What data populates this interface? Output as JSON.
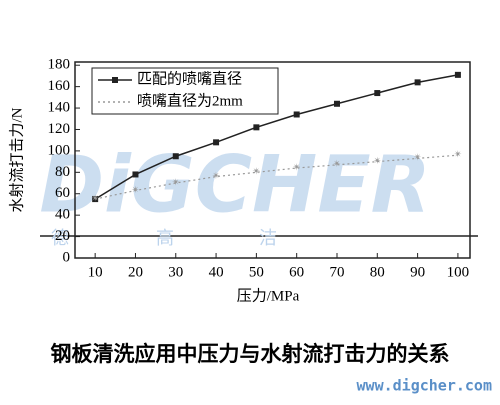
{
  "chart_data": {
    "type": "line",
    "x": [
      10,
      20,
      30,
      40,
      50,
      60,
      70,
      80,
      90,
      100
    ],
    "series": [
      {
        "name": "匹配的喷嘴直径",
        "color": "#222222",
        "dash": false,
        "values": [
          55,
          78,
          95,
          108,
          122,
          134,
          144,
          154,
          164,
          171
        ]
      },
      {
        "name": "喷嘴直径为2mm",
        "color": "#999999",
        "dash": true,
        "values": [
          55,
          63,
          70,
          76,
          80,
          84,
          87,
          90,
          93,
          96
        ]
      }
    ],
    "xlim": [
      5,
      103
    ],
    "xticks": [
      10,
      20,
      30,
      40,
      50,
      60,
      70,
      80,
      90,
      100
    ],
    "ylim": [
      0,
      183
    ],
    "yticks": [
      0,
      20,
      40,
      60,
      80,
      100,
      120,
      140,
      160,
      180
    ],
    "xlabel": "压力/MPa",
    "ylabel": "水射流打击力/N",
    "caption": "钢板清洗应用中压力与水射流打击力的关系"
  },
  "watermark": {
    "logo": "DiGCHER",
    "chars": [
      "德",
      "高",
      "洁"
    ],
    "url": "www.digcher.com"
  }
}
